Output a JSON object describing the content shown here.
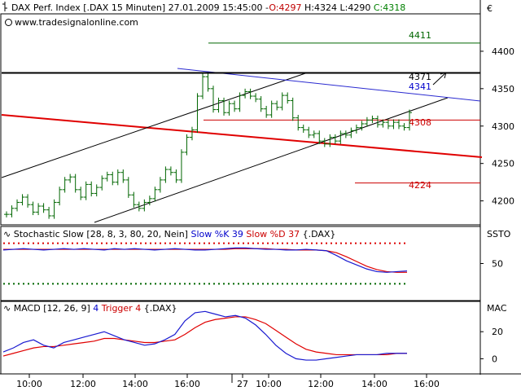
{
  "header": {
    "symbol": "DAX Perf. Index [.DAX  15 Minuten]",
    "datetime": "27.01.2009 15:45:00",
    "open": "O:4297",
    "high": "H:4324",
    "low": "L:4290",
    "close": "C:4318",
    "currency": "€",
    "url": "www.tradesignalonline.com"
  },
  "stoch_panel": {
    "label_main": "Stochastic Slow [28, 8, 3, 80, 20, Nein]",
    "label_k": "Slow %K 39",
    "label_d": "Slow %D 37",
    "label_sym": "{.DAX}",
    "corner": "SSTO"
  },
  "macd_panel": {
    "label_main": "MACD [12, 26, 9]",
    "label_v": "4",
    "label_trig": "Trigger 4",
    "label_sym": "{.DAX}",
    "corner": "MAC"
  },
  "chart_data": [
    {
      "type": "line",
      "panel": "price",
      "title": "DAX Perf. Index [.DAX  15 Minuten]",
      "y_ticks": [
        "4400",
        "4350",
        "4300",
        "4250",
        "4200"
      ],
      "ylim": [
        4168,
        4450
      ],
      "level_labels": [
        {
          "text": "4411",
          "value": 4411,
          "color": "#006600"
        },
        {
          "text": "4371",
          "value": 4371,
          "color": "#000000"
        },
        {
          "text": "4341",
          "value": 4341,
          "color": "#0000cc"
        },
        {
          "text": "4308",
          "value": 4308,
          "color": "#cc0000"
        },
        {
          "text": "4224",
          "value": 4224,
          "color": "#cc0000"
        }
      ],
      "bars_close": [
        4182,
        4190,
        4198,
        4205,
        4195,
        4185,
        4193,
        4188,
        4180,
        4198,
        4215,
        4228,
        4232,
        4215,
        4205,
        4222,
        4210,
        4218,
        4230,
        4235,
        4225,
        4238,
        4228,
        4208,
        4195,
        4190,
        4198,
        4203,
        4215,
        4228,
        4242,
        4238,
        4228,
        4265,
        4285,
        4295,
        4340,
        4366,
        4350,
        4322,
        4334,
        4318,
        4330,
        4323,
        4341,
        4346,
        4340,
        4336,
        4323,
        4315,
        4330,
        4325,
        4341,
        4334,
        4311,
        4298,
        4295,
        4288,
        4290,
        4280,
        4276,
        4285,
        4280,
        4290,
        4288,
        4294,
        4298,
        4303,
        4308,
        4310,
        4302,
        4305,
        4300,
        4305,
        4300,
        4298,
        4318
      ]
    },
    {
      "type": "line",
      "panel": "stochastic",
      "title": "Stochastic Slow [28, 8, 3, 80, 20, Nein]",
      "series": [
        {
          "name": "Slow %K 39",
          "values": [
            70,
            71,
            72,
            71,
            70,
            71,
            72,
            71,
            72,
            71,
            70,
            72,
            71,
            72,
            71,
            70,
            71,
            72,
            71,
            70,
            70,
            71,
            72,
            73,
            73,
            72,
            71,
            71,
            70,
            70,
            71,
            70,
            69,
            62,
            54,
            48,
            42,
            38,
            37,
            38,
            39
          ]
        },
        {
          "name": "Slow %D 37",
          "values": [
            71,
            71,
            71,
            71,
            71,
            71,
            71,
            71,
            71,
            71,
            71,
            71,
            71,
            71,
            71,
            71,
            71,
            71,
            71,
            71,
            71,
            71,
            71,
            72,
            72,
            72,
            72,
            71,
            71,
            70,
            70,
            70,
            69,
            66,
            60,
            53,
            46,
            41,
            38,
            37,
            37
          ]
        }
      ],
      "y_ticks": [
        "50"
      ],
      "ylim": [
        0,
        100
      ],
      "levels": [
        80,
        20
      ]
    },
    {
      "type": "line",
      "panel": "macd",
      "title": "MACD [12, 26, 9]",
      "series": [
        {
          "name": "4",
          "values": [
            5,
            8,
            12,
            14,
            10,
            8,
            12,
            14,
            16,
            18,
            20,
            17,
            14,
            12,
            10,
            11,
            14,
            18,
            28,
            34,
            35,
            33,
            31,
            32,
            30,
            25,
            18,
            10,
            4,
            0,
            -1,
            -1,
            0,
            1,
            2,
            3,
            3,
            3,
            4,
            4,
            4
          ]
        },
        {
          "name": "Trigger 4",
          "values": [
            2,
            4,
            6,
            8,
            9,
            9,
            10,
            11,
            12,
            13,
            15,
            15,
            14,
            13,
            12,
            12,
            13,
            14,
            18,
            23,
            27,
            29,
            30,
            31,
            31,
            29,
            26,
            21,
            16,
            11,
            7,
            5,
            4,
            3,
            3,
            3,
            3,
            3,
            3,
            4,
            4
          ]
        }
      ],
      "y_ticks": [
        "20",
        "0"
      ],
      "ylim": [
        -10,
        40
      ]
    }
  ],
  "time_axis": {
    "labels": [
      "10:00",
      "12:00",
      "14:00",
      "16:00",
      "27",
      "10:00",
      "12:00",
      "14:00",
      "16:00"
    ]
  }
}
